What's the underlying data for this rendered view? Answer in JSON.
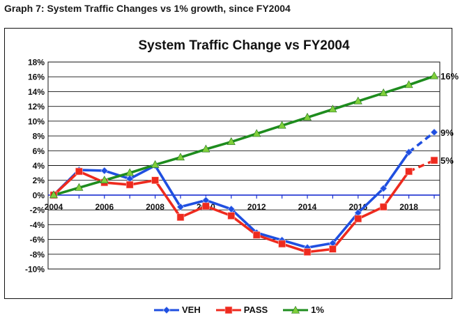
{
  "page_heading": "Graph 7:  System Traffic Changes vs 1% growth, since FY2004",
  "chart_data": {
    "type": "line",
    "title": "System Traffic Change vs FY2004",
    "xlabel": "",
    "ylabel": "",
    "x": [
      2004,
      2005,
      2006,
      2007,
      2008,
      2009,
      2010,
      2011,
      2012,
      2013,
      2014,
      2015,
      2016,
      2017,
      2018,
      2019
    ],
    "x_tick_labels": [
      "2004",
      "2006",
      "2008",
      "2010",
      "2012",
      "2014",
      "2016",
      "2018"
    ],
    "ylim": [
      -10,
      18
    ],
    "y_tick_labels": [
      "18%",
      "16%",
      "14%",
      "12%",
      "10%",
      "8%",
      "6%",
      "4%",
      "2%",
      "0%",
      "-2%",
      "-4%",
      "-6%",
      "-8%",
      "-10%"
    ],
    "grid": true,
    "legend_position": "bottom",
    "series": [
      {
        "name": "VEH",
        "color": "#1f4fe0",
        "marker": "diamond",
        "values": [
          0,
          3.4,
          3.3,
          2.2,
          4.0,
          -1.6,
          -0.7,
          -1.9,
          -5.1,
          -6.1,
          -7.1,
          -6.5,
          -2.4,
          0.9,
          5.8,
          8.5
        ],
        "projected_from_index": 14,
        "end_label": "9%"
      },
      {
        "name": "PASS",
        "color": "#ee2a1e",
        "marker": "square",
        "values": [
          0,
          3.2,
          1.7,
          1.4,
          2.0,
          -3.0,
          -1.5,
          -2.8,
          -5.4,
          -6.6,
          -7.7,
          -7.3,
          -3.2,
          -1.6,
          3.2,
          4.7
        ],
        "projected_from_index": 14,
        "end_label": "5%"
      },
      {
        "name": "1%",
        "color": "#1e8c1e",
        "marker": "triangle",
        "values": [
          0,
          1.0,
          2.0,
          3.0,
          4.1,
          5.1,
          6.2,
          7.2,
          8.3,
          9.4,
          10.5,
          11.6,
          12.7,
          13.8,
          14.9,
          16.1
        ],
        "end_label": "16%"
      }
    ]
  }
}
